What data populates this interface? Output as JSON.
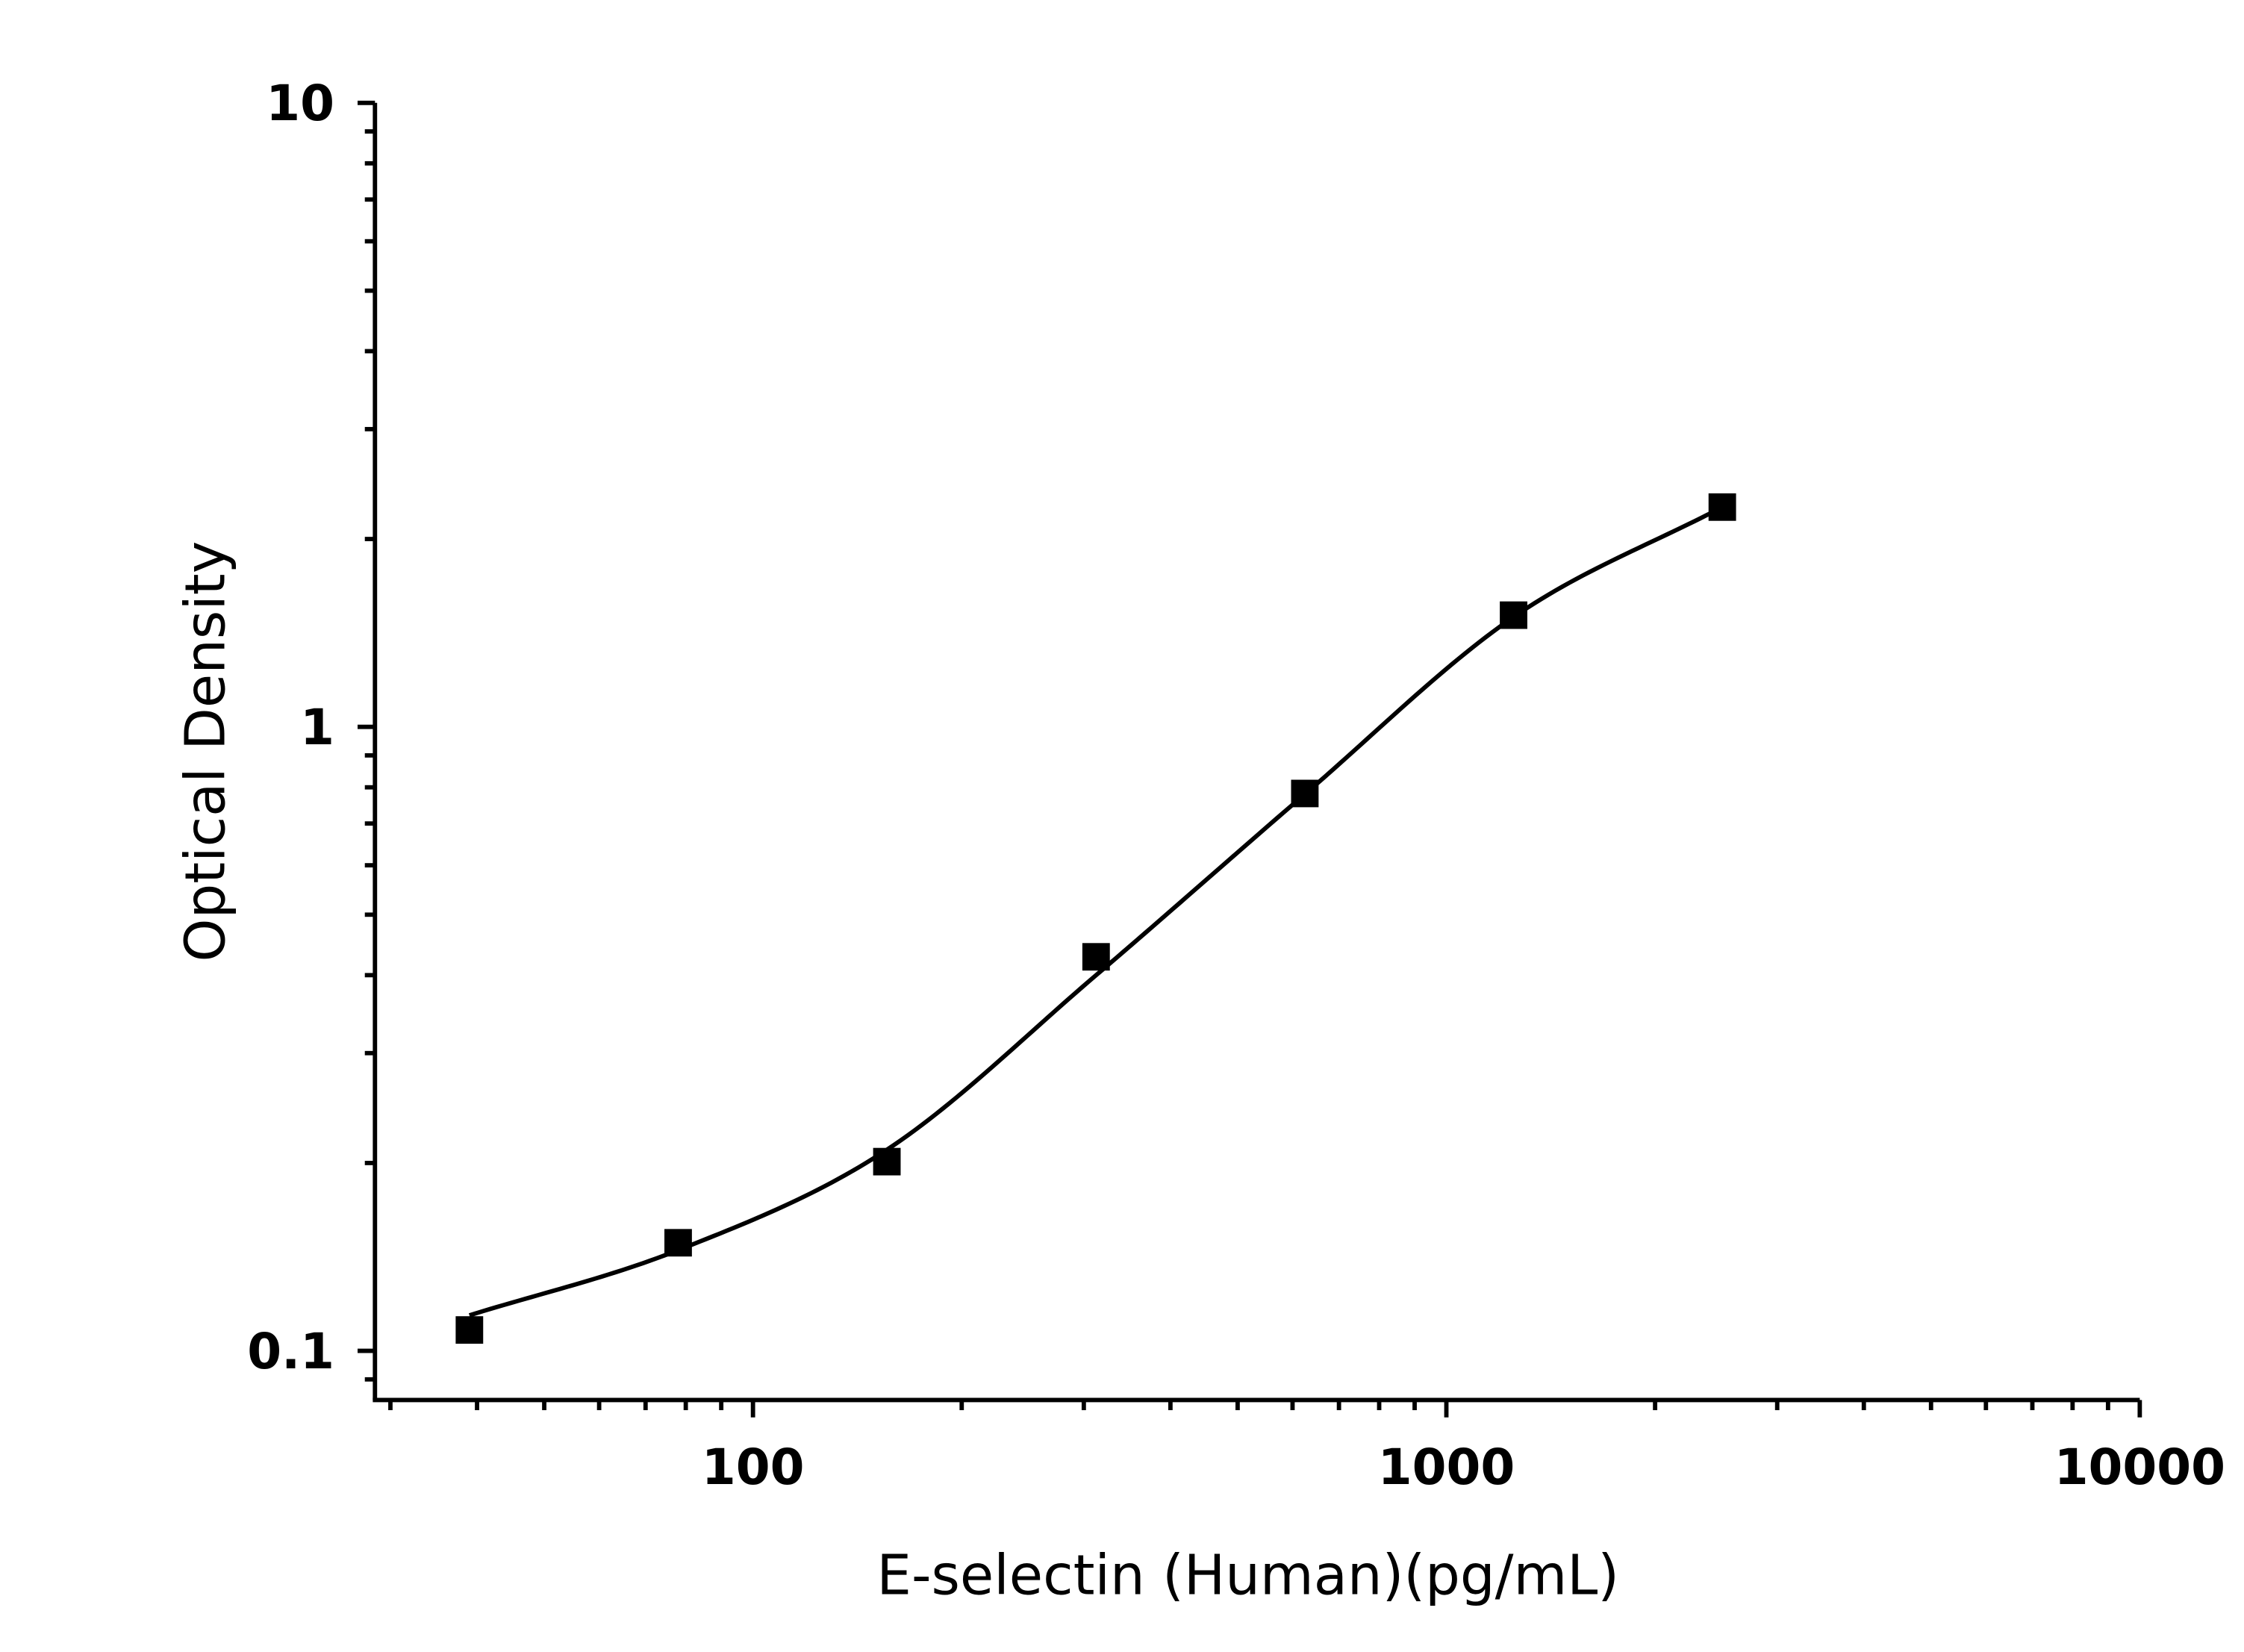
{
  "chart_data": {
    "type": "scatter",
    "title": "",
    "xlabel": "E-selectin (Human)(pg/mL)",
    "ylabel": "Optical Density",
    "x_scale": "log",
    "y_scale": "log",
    "xlim": [
      28.5,
      10000
    ],
    "ylim": [
      0.0834,
      10
    ],
    "x_ticks": [
      {
        "value": 100,
        "label": "100"
      },
      {
        "value": 1000,
        "label": "1000"
      },
      {
        "value": 10000,
        "label": "10000"
      }
    ],
    "y_ticks": [
      {
        "value": 0.1,
        "label": "0.1"
      },
      {
        "value": 1,
        "label": "1"
      },
      {
        "value": 10,
        "label": "10"
      }
    ],
    "grid": false,
    "legend": "none",
    "series": [
      {
        "marker": "square",
        "color": "#000000",
        "x": [
          39,
          78,
          156,
          312.5,
          625,
          1250,
          2500
        ],
        "y": [
          0.108,
          0.149,
          0.201,
          0.428,
          0.782,
          1.51,
          2.25
        ]
      }
    ],
    "fit_curve": {
      "color": "#000000",
      "x": [
        39,
        78,
        156,
        312.5,
        625,
        1250,
        2500
      ],
      "y": [
        0.114,
        0.145,
        0.21,
        0.4,
        0.78,
        1.5,
        2.25
      ]
    }
  }
}
